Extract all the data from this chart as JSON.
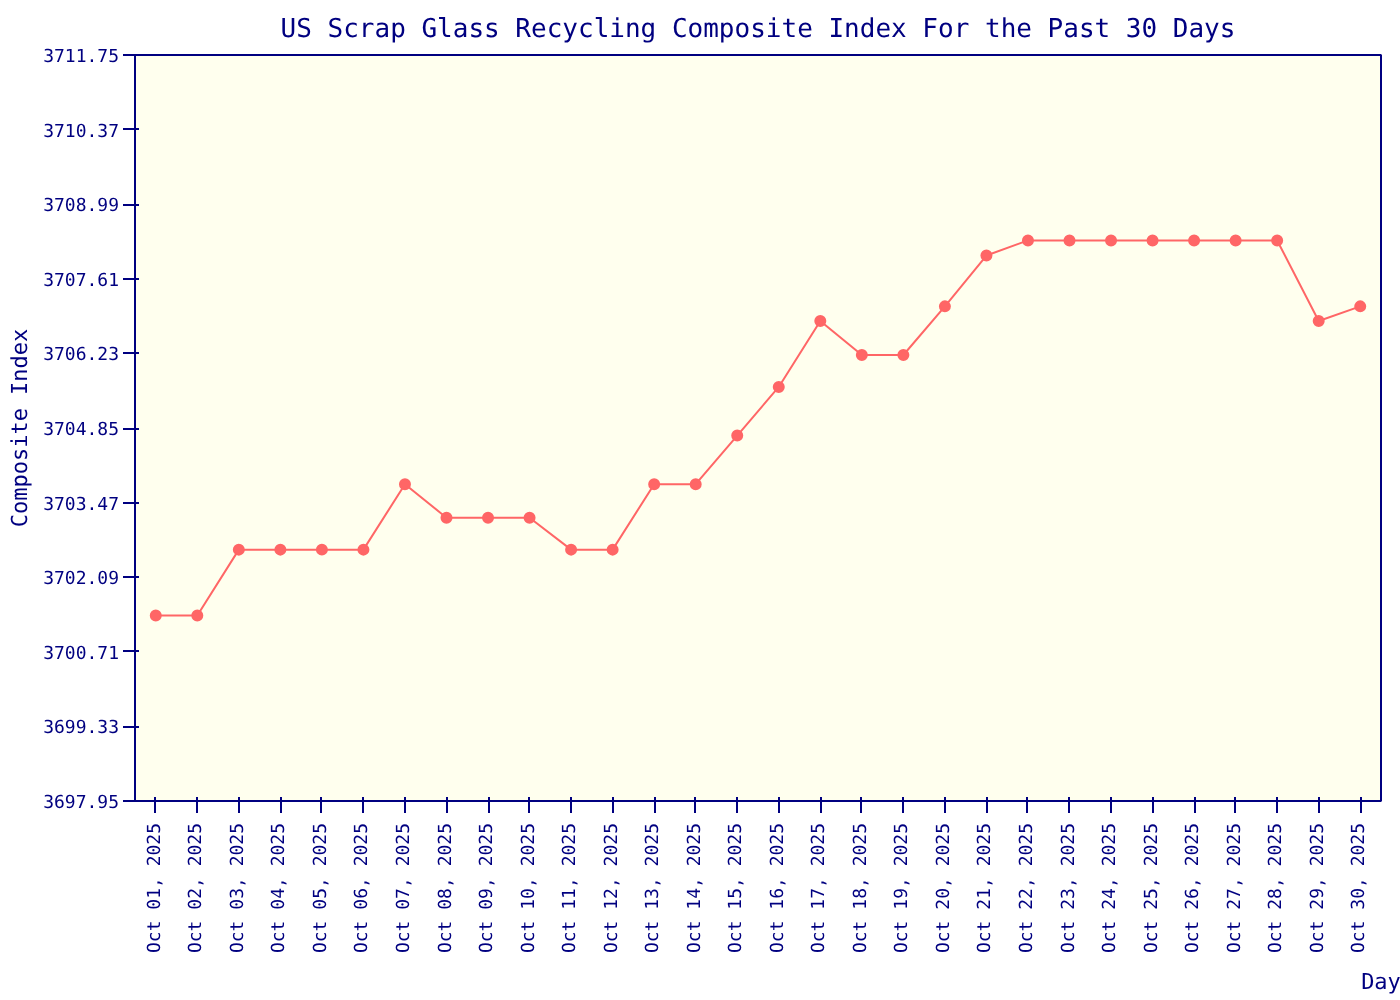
{
  "chart_data": {
    "type": "line",
    "title": "US Scrap Glass Recycling Composite Index For the Past 30 Days",
    "xlabel": "Day",
    "ylabel": "Composite Index",
    "categories": [
      "Oct 01, 2025",
      "Oct 02, 2025",
      "Oct 03, 2025",
      "Oct 04, 2025",
      "Oct 05, 2025",
      "Oct 06, 2025",
      "Oct 07, 2025",
      "Oct 08, 2025",
      "Oct 09, 2025",
      "Oct 10, 2025",
      "Oct 11, 2025",
      "Oct 12, 2025",
      "Oct 13, 2025",
      "Oct 14, 2025",
      "Oct 15, 2025",
      "Oct 16, 2025",
      "Oct 17, 2025",
      "Oct 18, 2025",
      "Oct 19, 2025",
      "Oct 20, 2025",
      "Oct 21, 2025",
      "Oct 22, 2025",
      "Oct 23, 2025",
      "Oct 24, 2025",
      "Oct 25, 2025",
      "Oct 26, 2025",
      "Oct 27, 2025",
      "Oct 28, 2025",
      "Oct 29, 2025",
      "Oct 30, 2025"
    ],
    "series": [
      {
        "color": "#ff6666",
        "values": [
          3701.38,
          3701.38,
          3702.6,
          3702.6,
          3702.6,
          3702.6,
          3703.81,
          3703.19,
          3703.19,
          3703.19,
          3702.6,
          3702.6,
          3703.81,
          3703.81,
          3704.71,
          3705.61,
          3706.83,
          3706.2,
          3706.2,
          3707.1,
          3708.04,
          3708.32,
          3708.32,
          3708.32,
          3708.32,
          3708.32,
          3708.32,
          3708.32,
          3706.83,
          3707.1
        ]
      }
    ],
    "ylim": [
      3697.95,
      3711.75
    ],
    "yticks": [
      3697.95,
      3699.33,
      3700.71,
      3702.09,
      3703.47,
      3704.85,
      3706.23,
      3707.61,
      3708.99,
      3710.37,
      3711.75
    ],
    "grid": false,
    "marker": "circle",
    "line_style": "solid"
  }
}
